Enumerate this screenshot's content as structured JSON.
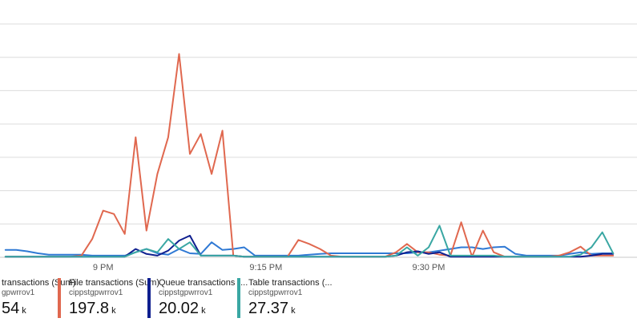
{
  "chart_data": {
    "type": "line",
    "xlabel": "",
    "ylabel": "",
    "x_ticks": [
      {
        "label": "9 PM",
        "t": 9
      },
      {
        "label": "9:15 PM",
        "t": 24
      },
      {
        "label": "9:30 PM",
        "t": 39
      }
    ],
    "x_range": [
      -0.5,
      58.2
    ],
    "y_range": [
      0,
      7
    ],
    "grid": true,
    "legend_position": "bottom",
    "series": [
      {
        "name": "transactions (Sum)",
        "color": "#2f79d4",
        "values": [
          0.22,
          0.22,
          0.18,
          0.12,
          0.08,
          0.08,
          0.08,
          0.08,
          0.05,
          0.05,
          0.05,
          0.05,
          0.15,
          0.25,
          0.12,
          0.08,
          0.25,
          0.12,
          0.1,
          0.45,
          0.22,
          0.25,
          0.3,
          0.05,
          0.05,
          0.05,
          0.05,
          0.05,
          0.08,
          0.1,
          0.12,
          0.12,
          0.12,
          0.12,
          0.12,
          0.12,
          0.12,
          0.12,
          0.15,
          0.15,
          0.2,
          0.25,
          0.3,
          0.3,
          0.25,
          0.3,
          0.32,
          0.1,
          0.05,
          0.05,
          0.05,
          0.05,
          0.1,
          0.15,
          0.1,
          0.12,
          0.12
        ]
      },
      {
        "name": "File transactions (Sum)",
        "color": "#e0684f",
        "values": [
          0.02,
          0.02,
          0.02,
          0.02,
          0.02,
          0.02,
          0.02,
          0.05,
          0.55,
          1.4,
          1.3,
          0.7,
          3.6,
          0.8,
          2.5,
          3.6,
          6.1,
          3.1,
          3.7,
          2.5,
          3.8,
          0.05,
          0.02,
          0.02,
          0.02,
          0.02,
          0.02,
          0.52,
          0.4,
          0.25,
          0.05,
          0.02,
          0.02,
          0.02,
          0.02,
          0.02,
          0.15,
          0.4,
          0.15,
          0.15,
          0.08,
          0.05,
          1.05,
          0.02,
          0.8,
          0.15,
          0.02,
          0.02,
          0.02,
          0.02,
          0.02,
          0.05,
          0.15,
          0.32,
          0.05,
          0.05,
          0.05
        ]
      },
      {
        "name": "Queue transactions (...",
        "color": "#0f1f8f",
        "values": [
          0.02,
          0.02,
          0.02,
          0.02,
          0.02,
          0.02,
          0.02,
          0.02,
          0.02,
          0.02,
          0.02,
          0.02,
          0.25,
          0.1,
          0.05,
          0.2,
          0.5,
          0.65,
          0.05,
          0.05,
          0.05,
          0.05,
          0.02,
          0.02,
          0.02,
          0.02,
          0.02,
          0.02,
          0.02,
          0.02,
          0.02,
          0.02,
          0.02,
          0.02,
          0.02,
          0.02,
          0.05,
          0.15,
          0.18,
          0.1,
          0.15,
          0.02,
          0.02,
          0.02,
          0.02,
          0.02,
          0.02,
          0.02,
          0.02,
          0.02,
          0.02,
          0.02,
          0.02,
          0.02,
          0.05,
          0.1,
          0.1
        ]
      },
      {
        "name": "Table transactions (...",
        "color": "#3aa7a3",
        "values": [
          0.02,
          0.02,
          0.02,
          0.02,
          0.02,
          0.02,
          0.02,
          0.02,
          0.02,
          0.02,
          0.02,
          0.02,
          0.15,
          0.25,
          0.15,
          0.55,
          0.25,
          0.45,
          0.05,
          0.05,
          0.05,
          0.05,
          0.02,
          0.02,
          0.02,
          0.02,
          0.02,
          0.02,
          0.02,
          0.02,
          0.02,
          0.02,
          0.02,
          0.02,
          0.02,
          0.02,
          0.05,
          0.3,
          0.05,
          0.3,
          0.95,
          0.05,
          0.05,
          0.05,
          0.05,
          0.05,
          0.02,
          0.02,
          0.02,
          0.02,
          0.02,
          0.02,
          0.02,
          0.08,
          0.3,
          0.75,
          0.12
        ]
      }
    ]
  },
  "legend": [
    {
      "name": "transactions (Sum)",
      "resource": "gpwrrov1",
      "value": "54",
      "unit": "k",
      "color": "#2f79d4"
    },
    {
      "name": "File transactions (Sum)",
      "resource": "cippstgpwrrov1",
      "value": "197.8",
      "unit": "k",
      "color": "#e0684f"
    },
    {
      "name": "Queue transactions (...",
      "resource": "cippstgpwrrov1",
      "value": "20.02",
      "unit": "k",
      "color": "#0f1f8f"
    },
    {
      "name": "Table transactions (...",
      "resource": "cippstgpwrrov1",
      "value": "27.37",
      "unit": "k",
      "color": "#3aa7a3"
    }
  ]
}
